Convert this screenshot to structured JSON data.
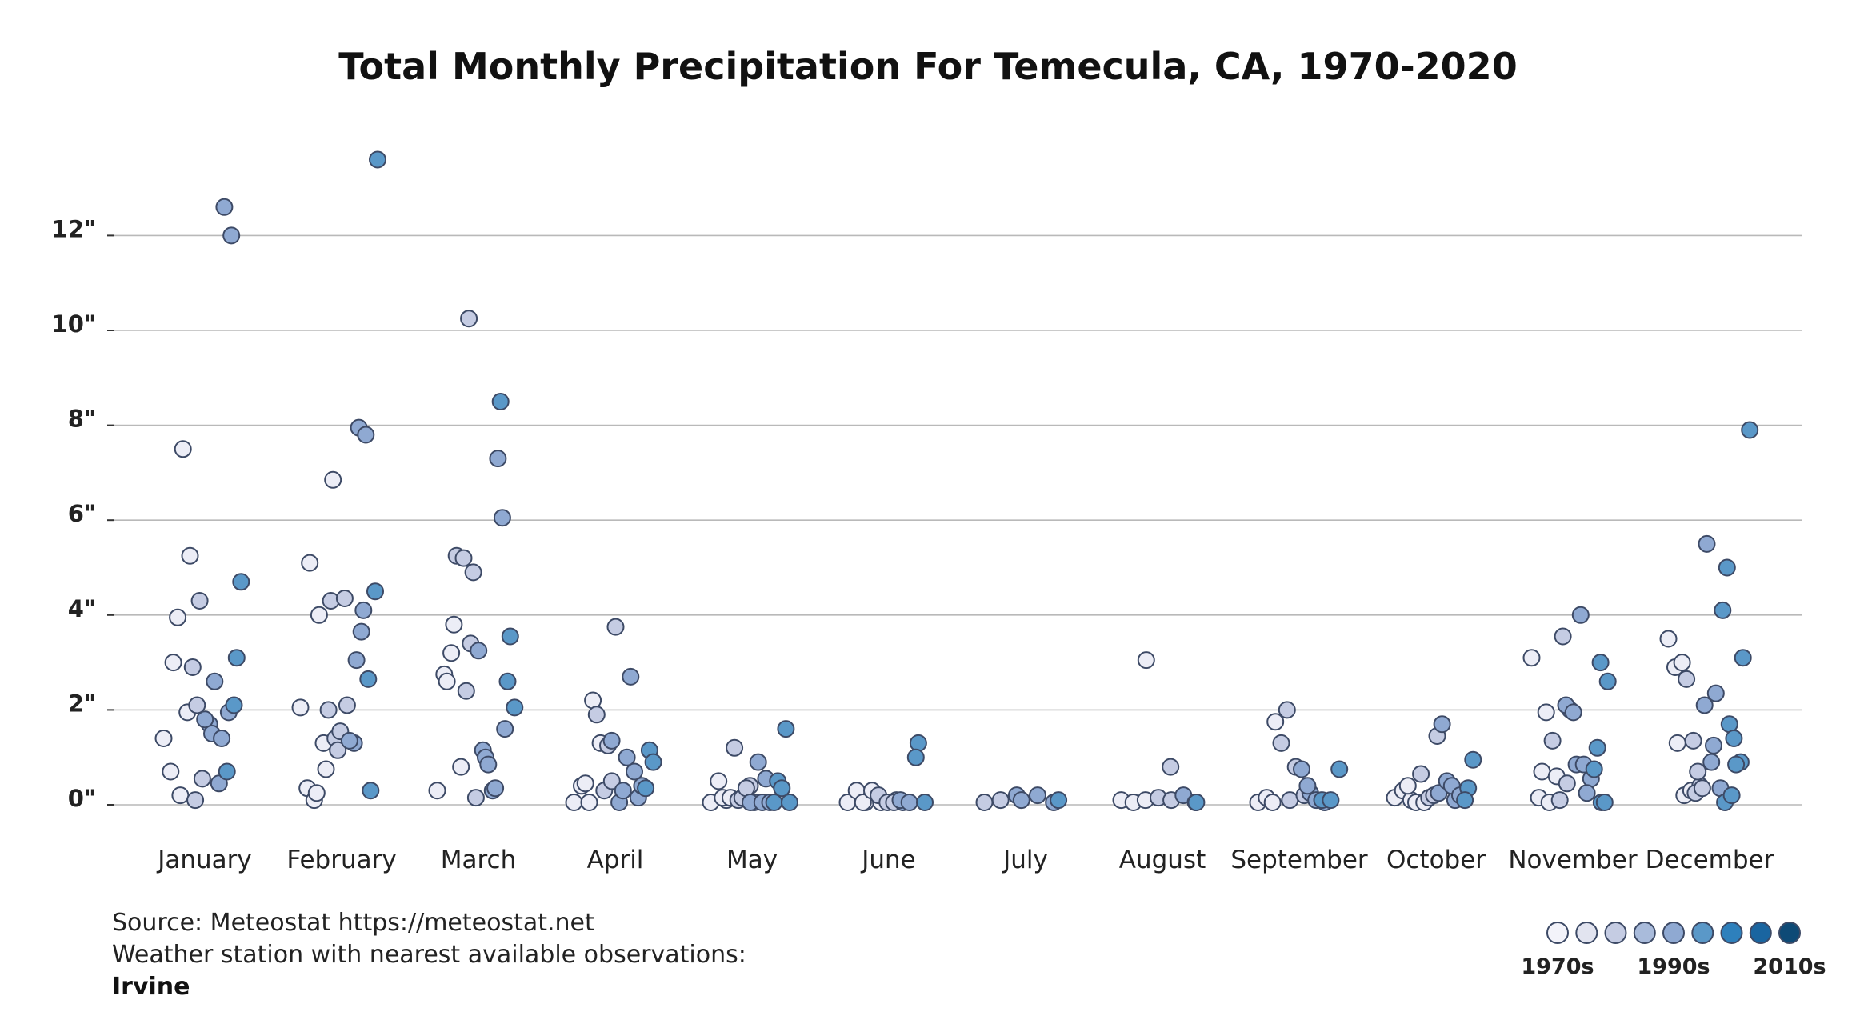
{
  "chart_data": {
    "type": "scatter",
    "title": "Total Monthly Precipitation For Temecula, CA, 1970-2020",
    "xlabel": "",
    "ylabel": "",
    "ylim": [
      -0.6,
      14.2
    ],
    "yticks": [
      0,
      2,
      4,
      6,
      8,
      10,
      12
    ],
    "ytick_labels": [
      "0\"",
      "2\"",
      "4\"",
      "6\"",
      "8\"",
      "10\"",
      "12\""
    ],
    "grid": true,
    "categories": [
      "January",
      "February",
      "March",
      "April",
      "May",
      "June",
      "July",
      "August",
      "September",
      "October",
      "November",
      "December"
    ],
    "decade_colors": [
      "#ecedf6",
      "#c5cce3",
      "#8fa9d2",
      "#5a98c8",
      "#1f6ea8"
    ],
    "points": [
      [
        {
          "d": 0,
          "v": 1.4
        },
        {
          "d": 0,
          "v": 0.7
        },
        {
          "d": 0,
          "v": 3.95
        },
        {
          "d": 0,
          "v": 3.0
        },
        {
          "d": 0,
          "v": 0.2
        },
        {
          "d": 0,
          "v": 1.95
        },
        {
          "d": 0,
          "v": 7.5
        },
        {
          "d": 0,
          "v": 5.25
        },
        {
          "d": 1,
          "v": 2.1
        },
        {
          "d": 1,
          "v": 2.9
        },
        {
          "d": 1,
          "v": 4.3
        },
        {
          "d": 1,
          "v": 0.1
        },
        {
          "d": 1,
          "v": 0.55
        },
        {
          "d": 2,
          "v": 1.7
        },
        {
          "d": 2,
          "v": 1.8
        },
        {
          "d": 2,
          "v": 1.5
        },
        {
          "d": 2,
          "v": 0.45
        },
        {
          "d": 2,
          "v": 2.6
        },
        {
          "d": 2,
          "v": 1.4
        },
        {
          "d": 2,
          "v": 1.95
        },
        {
          "d": 2,
          "v": 12.6
        },
        {
          "d": 2,
          "v": 12.0
        },
        {
          "d": 3,
          "v": 0.7
        },
        {
          "d": 3,
          "v": 2.1
        },
        {
          "d": 3,
          "v": 4.7
        },
        {
          "d": 3,
          "v": 3.1
        }
      ],
      [
        {
          "d": 0,
          "v": 2.05
        },
        {
          "d": 0,
          "v": 0.35
        },
        {
          "d": 0,
          "v": 0.1
        },
        {
          "d": 0,
          "v": 5.1
        },
        {
          "d": 0,
          "v": 0.25
        },
        {
          "d": 0,
          "v": 1.3
        },
        {
          "d": 0,
          "v": 4.0
        },
        {
          "d": 0,
          "v": 0.75
        },
        {
          "d": 0,
          "v": 6.85
        },
        {
          "d": 1,
          "v": 2.0
        },
        {
          "d": 1,
          "v": 1.4
        },
        {
          "d": 1,
          "v": 4.3
        },
        {
          "d": 1,
          "v": 1.15
        },
        {
          "d": 1,
          "v": 4.35
        },
        {
          "d": 1,
          "v": 1.55
        },
        {
          "d": 1,
          "v": 2.1
        },
        {
          "d": 2,
          "v": 1.3
        },
        {
          "d": 2,
          "v": 1.35
        },
        {
          "d": 2,
          "v": 3.05
        },
        {
          "d": 2,
          "v": 4.1
        },
        {
          "d": 2,
          "v": 7.95
        },
        {
          "d": 2,
          "v": 7.8
        },
        {
          "d": 2,
          "v": 3.65
        },
        {
          "d": 3,
          "v": 2.65
        },
        {
          "d": 3,
          "v": 4.5
        },
        {
          "d": 3,
          "v": 0.3
        },
        {
          "d": 3,
          "v": 13.6
        }
      ],
      [
        {
          "d": 0,
          "v": 0.3
        },
        {
          "d": 0,
          "v": 2.75
        },
        {
          "d": 0,
          "v": 3.2
        },
        {
          "d": 0,
          "v": 2.6
        },
        {
          "d": 0,
          "v": 3.8
        },
        {
          "d": 0,
          "v": 0.8
        },
        {
          "d": 1,
          "v": 5.25
        },
        {
          "d": 1,
          "v": 5.2
        },
        {
          "d": 1,
          "v": 3.4
        },
        {
          "d": 1,
          "v": 2.4
        },
        {
          "d": 1,
          "v": 4.9
        },
        {
          "d": 1,
          "v": 10.25
        },
        {
          "d": 1,
          "v": 0.15
        },
        {
          "d": 2,
          "v": 1.15
        },
        {
          "d": 2,
          "v": 3.25
        },
        {
          "d": 2,
          "v": 1.0
        },
        {
          "d": 2,
          "v": 0.3
        },
        {
          "d": 2,
          "v": 0.85
        },
        {
          "d": 2,
          "v": 0.35
        },
        {
          "d": 2,
          "v": 6.05
        },
        {
          "d": 2,
          "v": 7.3
        },
        {
          "d": 2,
          "v": 1.6
        },
        {
          "d": 3,
          "v": 8.5
        },
        {
          "d": 3,
          "v": 2.6
        },
        {
          "d": 3,
          "v": 2.05
        },
        {
          "d": 3,
          "v": 3.55
        }
      ],
      [
        {
          "d": 0,
          "v": 0.05
        },
        {
          "d": 0,
          "v": 0.4
        },
        {
          "d": 0,
          "v": 0.05
        },
        {
          "d": 0,
          "v": 0.45
        },
        {
          "d": 0,
          "v": 2.2
        },
        {
          "d": 0,
          "v": 1.3
        },
        {
          "d": 1,
          "v": 1.9
        },
        {
          "d": 1,
          "v": 0.3
        },
        {
          "d": 1,
          "v": 0.5
        },
        {
          "d": 1,
          "v": 1.25
        },
        {
          "d": 1,
          "v": 3.75
        },
        {
          "d": 2,
          "v": 1.35
        },
        {
          "d": 2,
          "v": 0.05
        },
        {
          "d": 2,
          "v": 1.0
        },
        {
          "d": 2,
          "v": 0.3
        },
        {
          "d": 2,
          "v": 2.7
        },
        {
          "d": 2,
          "v": 0.15
        },
        {
          "d": 2,
          "v": 0.7
        },
        {
          "d": 2,
          "v": 0.4
        },
        {
          "d": 3,
          "v": 1.15
        },
        {
          "d": 3,
          "v": 0.35
        },
        {
          "d": 3,
          "v": 0.9
        }
      ],
      [
        {
          "d": 0,
          "v": 0.05
        },
        {
          "d": 0,
          "v": 0.5
        },
        {
          "d": 0,
          "v": 0.1
        },
        {
          "d": 0,
          "v": 0.15
        },
        {
          "d": 0,
          "v": 0.15
        },
        {
          "d": 1,
          "v": 0.1
        },
        {
          "d": 1,
          "v": 1.2
        },
        {
          "d": 1,
          "v": 0.15
        },
        {
          "d": 1,
          "v": 0.4
        },
        {
          "d": 1,
          "v": 0.35
        },
        {
          "d": 2,
          "v": 0.05
        },
        {
          "d": 2,
          "v": 0.05
        },
        {
          "d": 2,
          "v": 0.9
        },
        {
          "d": 2,
          "v": 0.55
        },
        {
          "d": 2,
          "v": 0.05
        },
        {
          "d": 2,
          "v": 0.05
        },
        {
          "d": 3,
          "v": 0.5
        },
        {
          "d": 3,
          "v": 0.05
        },
        {
          "d": 3,
          "v": 0.35
        },
        {
          "d": 3,
          "v": 0.05
        },
        {
          "d": 3,
          "v": 1.6
        }
      ],
      [
        {
          "d": 0,
          "v": 0.05
        },
        {
          "d": 0,
          "v": 0.3
        },
        {
          "d": 0,
          "v": 0.05
        },
        {
          "d": 0,
          "v": 0.05
        },
        {
          "d": 0,
          "v": 0.3
        },
        {
          "d": 0,
          "v": 0.05
        },
        {
          "d": 1,
          "v": 0.2
        },
        {
          "d": 1,
          "v": 0.05
        },
        {
          "d": 1,
          "v": 0.1
        },
        {
          "d": 1,
          "v": 0.05
        },
        {
          "d": 2,
          "v": 0.05
        },
        {
          "d": 2,
          "v": 0.1
        },
        {
          "d": 2,
          "v": 0.05
        },
        {
          "d": 3,
          "v": 1.3
        },
        {
          "d": 3,
          "v": 1.0
        },
        {
          "d": 3,
          "v": 0.05
        }
      ],
      [
        {
          "d": 1,
          "v": 0.05
        },
        {
          "d": 1,
          "v": 0.1
        },
        {
          "d": 2,
          "v": 0.2
        },
        {
          "d": 2,
          "v": 0.1
        },
        {
          "d": 2,
          "v": 0.2
        },
        {
          "d": 2,
          "v": 0.05
        },
        {
          "d": 3,
          "v": 0.1
        }
      ],
      [
        {
          "d": 0,
          "v": 0.1
        },
        {
          "d": 0,
          "v": 0.05
        },
        {
          "d": 0,
          "v": 0.1
        },
        {
          "d": 0,
          "v": 3.05
        },
        {
          "d": 1,
          "v": 0.15
        },
        {
          "d": 1,
          "v": 0.8
        },
        {
          "d": 1,
          "v": 0.1
        },
        {
          "d": 2,
          "v": 0.2
        },
        {
          "d": 2,
          "v": 0.05
        },
        {
          "d": 3,
          "v": 0.05
        }
      ],
      [
        {
          "d": 0,
          "v": 0.05
        },
        {
          "d": 0,
          "v": 0.15
        },
        {
          "d": 0,
          "v": 1.75
        },
        {
          "d": 0,
          "v": 0.05
        },
        {
          "d": 1,
          "v": 1.3
        },
        {
          "d": 1,
          "v": 0.1
        },
        {
          "d": 1,
          "v": 2.0
        },
        {
          "d": 1,
          "v": 0.8
        },
        {
          "d": 1,
          "v": 0.2
        },
        {
          "d": 2,
          "v": 0.75
        },
        {
          "d": 2,
          "v": 0.25
        },
        {
          "d": 2,
          "v": 0.4
        },
        {
          "d": 2,
          "v": 0.1
        },
        {
          "d": 2,
          "v": 0.05
        },
        {
          "d": 3,
          "v": 0.1
        },
        {
          "d": 3,
          "v": 0.1
        },
        {
          "d": 3,
          "v": 0.75
        }
      ],
      [
        {
          "d": 0,
          "v": 0.15
        },
        {
          "d": 0,
          "v": 0.3
        },
        {
          "d": 0,
          "v": 0.1
        },
        {
          "d": 0,
          "v": 0.4
        },
        {
          "d": 0,
          "v": 0.05
        },
        {
          "d": 0,
          "v": 0.05
        },
        {
          "d": 1,
          "v": 0.65
        },
        {
          "d": 1,
          "v": 0.15
        },
        {
          "d": 1,
          "v": 1.45
        },
        {
          "d": 1,
          "v": 0.2
        },
        {
          "d": 2,
          "v": 1.7
        },
        {
          "d": 2,
          "v": 0.25
        },
        {
          "d": 2,
          "v": 0.5
        },
        {
          "d": 2,
          "v": 0.1
        },
        {
          "d": 2,
          "v": 0.4
        },
        {
          "d": 2,
          "v": 0.2
        },
        {
          "d": 3,
          "v": 0.35
        },
        {
          "d": 3,
          "v": 0.1
        },
        {
          "d": 3,
          "v": 0.95
        }
      ],
      [
        {
          "d": 0,
          "v": 3.1
        },
        {
          "d": 0,
          "v": 0.15
        },
        {
          "d": 0,
          "v": 1.95
        },
        {
          "d": 0,
          "v": 0.7
        },
        {
          "d": 0,
          "v": 0.05
        },
        {
          "d": 0,
          "v": 0.6
        },
        {
          "d": 1,
          "v": 1.35
        },
        {
          "d": 1,
          "v": 0.1
        },
        {
          "d": 1,
          "v": 0.45
        },
        {
          "d": 1,
          "v": 3.55
        },
        {
          "d": 1,
          "v": 2.0
        },
        {
          "d": 2,
          "v": 2.1
        },
        {
          "d": 2,
          "v": 1.95
        },
        {
          "d": 2,
          "v": 4.0
        },
        {
          "d": 2,
          "v": 0.85
        },
        {
          "d": 2,
          "v": 0.85
        },
        {
          "d": 2,
          "v": 0.55
        },
        {
          "d": 2,
          "v": 0.25
        },
        {
          "d": 3,
          "v": 0.75
        },
        {
          "d": 3,
          "v": 0.05
        },
        {
          "d": 3,
          "v": 1.2
        },
        {
          "d": 3,
          "v": 0.05
        },
        {
          "d": 3,
          "v": 3.0
        },
        {
          "d": 3,
          "v": 2.6
        }
      ],
      [
        {
          "d": 0,
          "v": 3.5
        },
        {
          "d": 0,
          "v": 2.9
        },
        {
          "d": 0,
          "v": 3.0
        },
        {
          "d": 0,
          "v": 1.3
        },
        {
          "d": 0,
          "v": 0.2
        },
        {
          "d": 0,
          "v": 0.3
        },
        {
          "d": 1,
          "v": 2.65
        },
        {
          "d": 1,
          "v": 1.35
        },
        {
          "d": 1,
          "v": 0.4
        },
        {
          "d": 1,
          "v": 0.25
        },
        {
          "d": 1,
          "v": 0.35
        },
        {
          "d": 1,
          "v": 0.7
        },
        {
          "d": 2,
          "v": 2.1
        },
        {
          "d": 2,
          "v": 0.9
        },
        {
          "d": 2,
          "v": 5.5
        },
        {
          "d": 2,
          "v": 1.25
        },
        {
          "d": 2,
          "v": 0.35
        },
        {
          "d": 2,
          "v": 2.35
        },
        {
          "d": 3,
          "v": 4.1
        },
        {
          "d": 3,
          "v": 1.7
        },
        {
          "d": 3,
          "v": 0.05
        },
        {
          "d": 3,
          "v": 0.2
        },
        {
          "d": 3,
          "v": 5.0
        },
        {
          "d": 3,
          "v": 1.4
        },
        {
          "d": 3,
          "v": 0.9
        },
        {
          "d": 3,
          "v": 0.85
        },
        {
          "d": 3,
          "v": 3.1
        },
        {
          "d": 3,
          "v": 7.9
        }
      ]
    ]
  },
  "footer": {
    "source_line": "Source: Meteostat https://meteostat.net",
    "station_line": "Weather station with nearest available observations:",
    "station_name": "Irvine"
  },
  "legend": {
    "colors": [
      "#f3f3fa",
      "#e2e4f0",
      "#c5cce3",
      "#a9bbdb",
      "#8fa9d2",
      "#5a98c8",
      "#2e80bc",
      "#1a65a0",
      "#0e4a76"
    ],
    "labels": [
      "1970s",
      "1990s",
      "2010s"
    ]
  }
}
